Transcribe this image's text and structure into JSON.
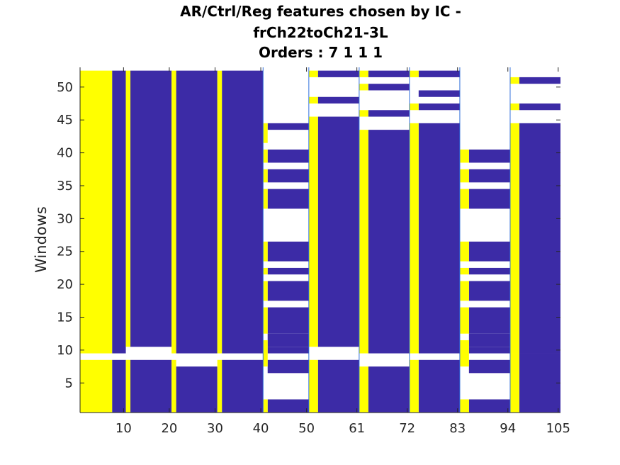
{
  "chart_data": {
    "type": "heatmap",
    "title_lines": [
      "AR/Ctrl/Reg features chosen by IC -",
      "frCh22toCh21-3L",
      "Orders : 7 1 1 1"
    ],
    "xlabel": "",
    "ylabel": "Windows",
    "xlim": [
      0.5,
      105.5
    ],
    "ylim": [
      0.5,
      53
    ],
    "x_ticks": [
      10,
      20,
      30,
      40,
      50,
      61,
      72,
      83,
      94,
      105
    ],
    "y_ticks": [
      5,
      10,
      15,
      20,
      25,
      30,
      35,
      40,
      45,
      50
    ],
    "colors": {
      "ar": "#ffff00",
      "ctrl": "#3c2ba6",
      "none": "#ffffff",
      "divider": "#2f6fdb"
    },
    "group_dividers": [
      40.5,
      50.5,
      61.5,
      72.5,
      83.5,
      94.5
    ],
    "yellow_columns": [
      {
        "x": [
          0.5,
          7.5
        ],
        "rows": [
          [
            1,
            8
          ],
          [
            10,
            52
          ]
        ]
      },
      {
        "x": [
          10.5,
          11.5
        ],
        "rows": [
          [
            1,
            8
          ],
          [
            11,
            52
          ]
        ]
      },
      {
        "x": [
          20.5,
          21.5
        ],
        "rows": [
          [
            1,
            8
          ],
          [
            10,
            52
          ]
        ]
      },
      {
        "x": [
          30.5,
          31.5
        ],
        "rows": [
          [
            1,
            8
          ],
          [
            10,
            52
          ]
        ]
      },
      {
        "x": [
          40.5,
          41.5
        ],
        "rows": [
          [
            1,
            2
          ],
          [
            8,
            11
          ],
          [
            13,
            16
          ],
          [
            18,
            20
          ],
          [
            22,
            22
          ],
          [
            24,
            26
          ],
          [
            32,
            34
          ],
          [
            36,
            37
          ],
          [
            39,
            40
          ],
          [
            42,
            44
          ]
        ]
      },
      {
        "x": [
          50.5,
          52.5
        ],
        "rows": [
          [
            1,
            8
          ],
          [
            11,
            45
          ],
          [
            48,
            48
          ],
          [
            52,
            52
          ]
        ]
      },
      {
        "x": [
          61.5,
          63.5
        ],
        "rows": [
          [
            1,
            7
          ],
          [
            10,
            43
          ],
          [
            46,
            46
          ],
          [
            50,
            50
          ],
          [
            52,
            52
          ]
        ]
      },
      {
        "x": [
          72.5,
          74.5
        ],
        "rows": [
          [
            1,
            8
          ],
          [
            10,
            44
          ],
          [
            47,
            47
          ],
          [
            52,
            52
          ]
        ]
      },
      {
        "x": [
          83.5,
          85.5
        ],
        "rows": [
          [
            1,
            2
          ],
          [
            8,
            11
          ],
          [
            13,
            16
          ],
          [
            18,
            20
          ],
          [
            22,
            22
          ],
          [
            24,
            26
          ],
          [
            32,
            34
          ],
          [
            36,
            37
          ],
          [
            39,
            40
          ]
        ]
      },
      {
        "x": [
          94.5,
          96.5
        ],
        "rows": [
          [
            1,
            9
          ],
          [
            10,
            44
          ],
          [
            47,
            47
          ],
          [
            51,
            51
          ]
        ]
      }
    ],
    "blue_columns": [
      {
        "x": [
          7.5,
          10.5
        ],
        "rows": [
          [
            1,
            8
          ],
          [
            10,
            52
          ]
        ]
      },
      {
        "x": [
          11.5,
          20.5
        ],
        "rows": [
          [
            1,
            8
          ],
          [
            11,
            52
          ]
        ]
      },
      {
        "x": [
          21.5,
          30.5
        ],
        "rows": [
          [
            1,
            7
          ],
          [
            10,
            52
          ]
        ]
      },
      {
        "x": [
          31.5,
          40.5
        ],
        "rows": [
          [
            1,
            8
          ],
          [
            10,
            52
          ]
        ]
      },
      {
        "x": [
          41.5,
          50.5
        ],
        "rows": [
          [
            1,
            2
          ],
          [
            7,
            8
          ],
          [
            10,
            10
          ],
          [
            11,
            12
          ],
          [
            13,
            16
          ],
          [
            18,
            20
          ],
          [
            22,
            22
          ],
          [
            24,
            26
          ],
          [
            32,
            34
          ],
          [
            36,
            37
          ],
          [
            39,
            40
          ],
          [
            44,
            44
          ]
        ]
      },
      {
        "x": [
          52.5,
          61.5
        ],
        "rows": [
          [
            1,
            8
          ],
          [
            11,
            45
          ],
          [
            48,
            48
          ],
          [
            52,
            52
          ]
        ]
      },
      {
        "x": [
          63.5,
          72.5
        ],
        "rows": [
          [
            1,
            7
          ],
          [
            10,
            43
          ],
          [
            46,
            46
          ],
          [
            50,
            50
          ],
          [
            52,
            52
          ]
        ]
      },
      {
        "x": [
          74.5,
          83.5
        ],
        "rows": [
          [
            1,
            8
          ],
          [
            10,
            44
          ],
          [
            47,
            47
          ],
          [
            49,
            49
          ],
          [
            52,
            52
          ]
        ]
      },
      {
        "x": [
          85.5,
          94.5
        ],
        "rows": [
          [
            1,
            2
          ],
          [
            7,
            8
          ],
          [
            10,
            10
          ],
          [
            11,
            12
          ],
          [
            13,
            16
          ],
          [
            18,
            20
          ],
          [
            22,
            22
          ],
          [
            24,
            26
          ],
          [
            32,
            34
          ],
          [
            36,
            37
          ],
          [
            39,
            40
          ]
        ]
      },
      {
        "x": [
          96.5,
          105.5
        ],
        "rows": [
          [
            1,
            9
          ],
          [
            10,
            44
          ],
          [
            47,
            47
          ],
          [
            51,
            51
          ]
        ]
      }
    ]
  }
}
